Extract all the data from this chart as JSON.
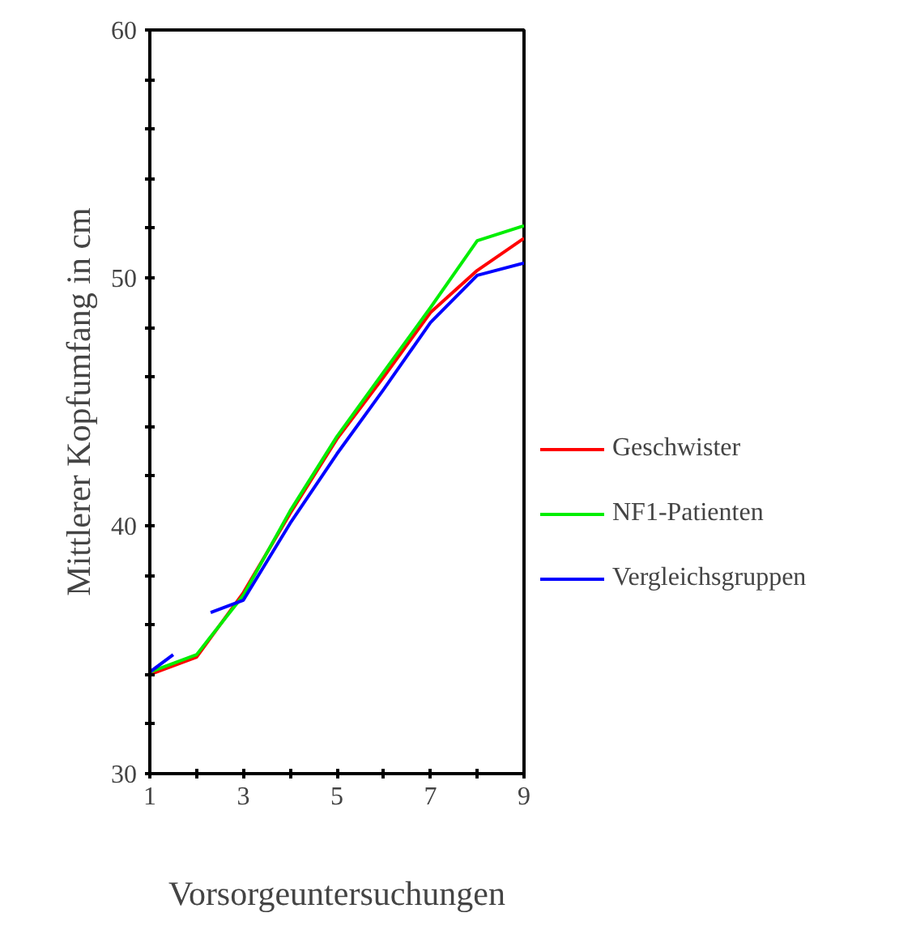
{
  "chart_data": {
    "type": "line",
    "xlabel": "Vorsorgeuntersuchungen",
    "ylabel": "Mittlerer Kopfumfang in cm",
    "x": [
      1,
      2,
      3,
      4,
      5,
      6,
      7,
      8,
      9
    ],
    "series": [
      {
        "name": "Geschwister",
        "color": "#ff0000",
        "values": [
          34.0,
          34.7,
          37.3,
          40.5,
          43.5,
          46.0,
          48.6,
          50.3,
          51.6
        ]
      },
      {
        "name": "NF1-Patienten",
        "color": "#00ee00",
        "values": [
          34.1,
          34.8,
          37.2,
          40.6,
          43.6,
          46.2,
          48.8,
          51.5,
          52.1
        ]
      },
      {
        "name": "Vergleichsgruppen",
        "color": "#0000ff",
        "x": [
          1,
          1.5,
          2,
          2.3,
          3,
          4,
          5,
          6,
          7,
          8,
          9
        ],
        "values": [
          34.1,
          34.8,
          null,
          36.5,
          37.0,
          40.1,
          42.9,
          45.5,
          48.2,
          50.1,
          50.6
        ]
      }
    ],
    "xlim": [
      1,
      9
    ],
    "ylim": [
      30,
      60
    ],
    "xticks": [
      1,
      {
        "value": 2,
        "label": null
      },
      3,
      {
        "value": 4,
        "label": null
      },
      5,
      {
        "value": 6,
        "label": null
      },
      7,
      {
        "value": 8,
        "label": null
      },
      9
    ],
    "yticks": [
      30,
      {
        "value": 32,
        "label": null
      },
      {
        "value": 34,
        "label": null
      },
      {
        "value": 36,
        "label": null
      },
      {
        "value": 38,
        "label": null
      },
      40,
      {
        "value": 42,
        "label": null
      },
      {
        "value": 44,
        "label": null
      },
      {
        "value": 46,
        "label": null
      },
      {
        "value": 48,
        "label": null
      },
      50,
      {
        "value": 52,
        "label": null
      },
      {
        "value": 54,
        "label": null
      },
      {
        "value": 56,
        "label": null
      },
      {
        "value": 58,
        "label": null
      },
      60
    ],
    "grid": false,
    "legend": "right",
    "line_style": "solid",
    "marker": "none"
  }
}
